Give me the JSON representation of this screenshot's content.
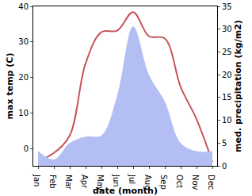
{
  "chart_data": {
    "type": "line",
    "xlabel": "date (month)",
    "ylabel": "max temp (C)",
    "y2label": "med. precipitation (kg/m2)",
    "categories": [
      "Jan",
      "Feb",
      "Mar",
      "Apr",
      "May",
      "Jun",
      "Jul",
      "Aug",
      "Sep",
      "Oct",
      "Nov",
      "Dec"
    ],
    "series": [
      {
        "name": "med. precipitation",
        "type": "area",
        "axis": "y2",
        "color": "#b3bef2",
        "values": [
          3.2,
          1.4,
          5.0,
          6.4,
          6.7,
          15.5,
          30.6,
          20.0,
          14.1,
          5.0,
          3.2,
          3.2
        ]
      },
      {
        "name": "max temp",
        "type": "line",
        "color": "#c8545a",
        "values": [
          -3.4,
          -1.1,
          3.8,
          24.0,
          32.8,
          33.2,
          38.4,
          31.6,
          31.0,
          17.4,
          8.4,
          -3.6
        ]
      }
    ],
    "ylim": [
      -4.7,
      40
    ],
    "yticks": [
      0,
      10,
      20,
      30,
      40
    ],
    "y2lim": [
      0,
      35
    ],
    "y2ticks": [
      0,
      5,
      10,
      15,
      20,
      25,
      30,
      35
    ],
    "grid": false
  }
}
